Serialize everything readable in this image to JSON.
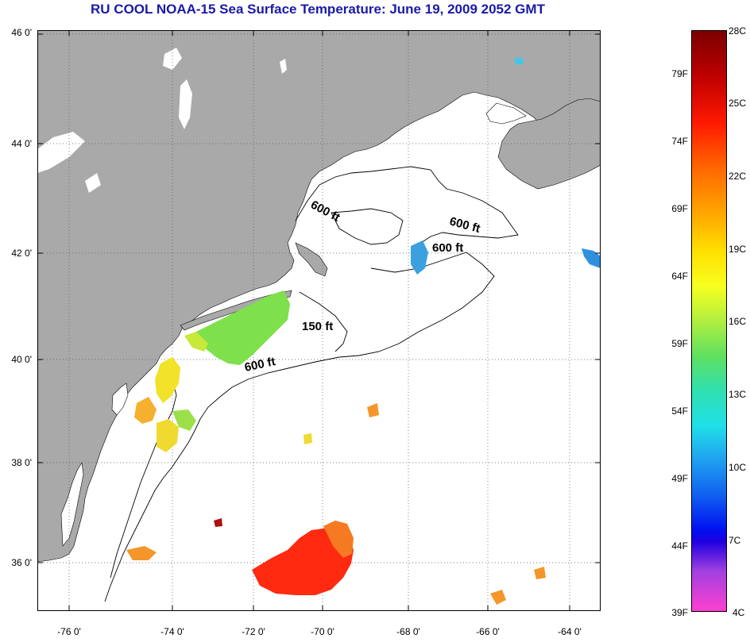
{
  "title": "RU COOL  NOAA-15  Sea Surface Temperature:  June 19, 2009 2052 GMT",
  "colors": {
    "title": "#1a1aa8",
    "land": "#a9a9a9",
    "ocean": "#ffffff",
    "grid": "#555555",
    "contour": "#000000"
  },
  "lat_labels": [
    "46 0'",
    "44 0'",
    "42 0'",
    "40 0'",
    "38 0'",
    "36 0'"
  ],
  "lon_labels": [
    "-76 0'",
    "-74 0'",
    "-72 0'",
    "-70 0'",
    "-68 0'",
    "-66 0'",
    "-64 0'"
  ],
  "contour_labels": [
    {
      "text": "600 ft",
      "name": "contour-label-600ft-gulf-of-maine"
    },
    {
      "text": "600 ft",
      "name": "contour-label-600ft-east"
    },
    {
      "text": "600 ft",
      "name": "contour-label-600ft-georges"
    },
    {
      "text": "150 ft",
      "name": "contour-label-150ft"
    },
    {
      "text": "600 ft",
      "name": "contour-label-600ft-shelf"
    }
  ],
  "colorbar": {
    "f_labels": [
      "79F",
      "74F",
      "69F",
      "64F",
      "59F",
      "54F",
      "49F",
      "44F",
      "39F"
    ],
    "c_labels": [
      "28C",
      "25C",
      "22C",
      "19C",
      "16C",
      "13C",
      "10C",
      "7C",
      "4C"
    ]
  }
}
